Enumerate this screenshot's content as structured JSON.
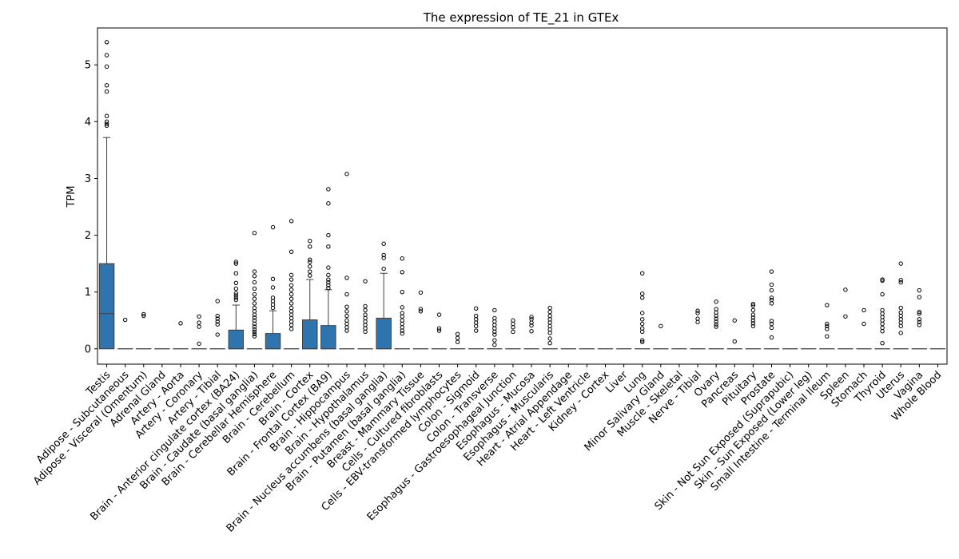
{
  "chart_data": {
    "type": "box",
    "title": "The expression of TE_21 in GTEx",
    "xlabel": "",
    "ylabel": "TPM",
    "ylim": [
      -0.27,
      5.65
    ],
    "yticks": [
      0,
      1,
      2,
      3,
      4,
      5
    ],
    "grid": false,
    "box_color": "#2e75b0",
    "categories": [
      "Testis",
      "Adipose - Subcutaneous",
      "Adipose - Visceral (Omentum)",
      "Adrenal Gland",
      "Artery - Aorta",
      "Artery - Coronary",
      "Artery - Tibial",
      "Brain - Anterior cingulate cortex (BA24)",
      "Brain - Caudate (basal ganglia)",
      "Brain - Cerebellar Hemisphere",
      "Brain - Cerebellum",
      "Brain - Cortex",
      "Brain - Frontal Cortex (BA9)",
      "Brain - Hippocampus",
      "Brain - Hypothalamus",
      "Brain - Nucleus accumbens (basal ganglia)",
      "Brain - Putamen (basal ganglia)",
      "Breast - Mammary Tissue",
      "Cells - Cultured fibroblasts",
      "Cells - EBV-transformed lymphocytes",
      "Colon - Sigmoid",
      "Colon - Transverse",
      "Esophagus - Gastroesophageal Junction",
      "Esophagus - Mucosa",
      "Esophagus - Muscularis",
      "Heart - Atrial Appendage",
      "Heart - Left Ventricle",
      "Kidney - Cortex",
      "Liver",
      "Lung",
      "Minor Salivary Gland",
      "Muscle - Skeletal",
      "Nerve - Tibial",
      "Ovary",
      "Pancreas",
      "Pituitary",
      "Prostate",
      "Skin - Not Sun Exposed (Suprapubic)",
      "Skin - Sun Exposed (Lower leg)",
      "Small Intestine - Terminal Ileum",
      "Spleen",
      "Stomach",
      "Thyroid",
      "Uterus",
      "Vagina",
      "Whole Blood"
    ],
    "boxes": [
      {
        "q1": 0,
        "median": 0.62,
        "q3": 1.5,
        "whislo": 0,
        "whishi": 3.72,
        "fliers": [
          3.93,
          3.96,
          4.0,
          4.1,
          4.53,
          4.64,
          4.97,
          5.17,
          5.4
        ]
      },
      {
        "q1": 0,
        "median": 0,
        "q3": 0,
        "whislo": 0,
        "whishi": 0,
        "fliers": [
          0.51
        ]
      },
      {
        "q1": 0,
        "median": 0,
        "q3": 0,
        "whislo": 0,
        "whishi": 0,
        "fliers": [
          0.58,
          0.61
        ]
      },
      {
        "q1": 0,
        "median": 0,
        "q3": 0,
        "whislo": 0,
        "whishi": 0,
        "fliers": []
      },
      {
        "q1": 0,
        "median": 0,
        "q3": 0,
        "whislo": 0,
        "whishi": 0,
        "fliers": [
          0.45
        ]
      },
      {
        "q1": 0,
        "median": 0,
        "q3": 0,
        "whislo": 0,
        "whishi": 0,
        "fliers": [
          0.09,
          0.39,
          0.46,
          0.57
        ]
      },
      {
        "q1": 0,
        "median": 0,
        "q3": 0,
        "whislo": 0,
        "whishi": 0,
        "fliers": [
          0.25,
          0.43,
          0.48,
          0.53,
          0.58,
          0.84
        ]
      },
      {
        "q1": 0,
        "median": 0,
        "q3": 0.33,
        "whislo": 0,
        "whishi": 0.77,
        "fliers": [
          0.86,
          0.9,
          0.94,
          0.98,
          1.06,
          1.16,
          1.33,
          1.5,
          1.53
        ]
      },
      {
        "q1": 0,
        "median": 0,
        "q3": 0,
        "whislo": 0,
        "whishi": 0,
        "fliers": [
          0.22,
          0.26,
          0.3,
          0.34,
          0.39,
          0.44,
          0.5,
          0.55,
          0.6,
          0.66,
          0.72,
          0.8,
          0.88,
          0.96,
          1.06,
          1.17,
          1.28,
          1.36,
          2.04
        ]
      },
      {
        "q1": 0,
        "median": 0,
        "q3": 0.27,
        "whislo": 0,
        "whishi": 0.67,
        "fliers": [
          0.72,
          0.78,
          0.84,
          0.9,
          1.08,
          1.23,
          2.14
        ]
      },
      {
        "q1": 0,
        "median": 0,
        "q3": 0,
        "whislo": 0,
        "whishi": 0,
        "fliers": [
          0.35,
          0.42,
          0.48,
          0.54,
          0.6,
          0.66,
          0.72,
          0.8,
          0.88,
          0.96,
          1.04,
          1.12,
          1.22,
          1.3,
          1.71,
          2.25
        ]
      },
      {
        "q1": 0,
        "median": 0,
        "q3": 0.51,
        "whislo": 0,
        "whishi": 1.22,
        "fliers": [
          1.29,
          1.36,
          1.45,
          1.53,
          1.57,
          1.8,
          1.9
        ]
      },
      {
        "q1": 0,
        "median": 0,
        "q3": 0.41,
        "whislo": 0,
        "whishi": 1.04,
        "fliers": [
          1.07,
          1.12,
          1.17,
          1.22,
          1.3,
          1.43,
          1.8,
          2.0,
          2.56,
          2.81
        ]
      },
      {
        "q1": 0,
        "median": 0,
        "q3": 0,
        "whislo": 0,
        "whishi": 0,
        "fliers": [
          0.32,
          0.38,
          0.44,
          0.5,
          0.58,
          0.66,
          0.74,
          0.96,
          1.25,
          3.08
        ]
      },
      {
        "q1": 0,
        "median": 0,
        "q3": 0,
        "whislo": 0,
        "whishi": 0,
        "fliers": [
          0.3,
          0.36,
          0.42,
          0.48,
          0.54,
          0.6,
          0.68,
          0.75,
          1.19
        ]
      },
      {
        "q1": 0,
        "median": 0,
        "q3": 0.54,
        "whislo": 0,
        "whishi": 1.33,
        "fliers": [
          1.41,
          1.6,
          1.65,
          1.85
        ]
      },
      {
        "q1": 0,
        "median": 0,
        "q3": 0,
        "whislo": 0,
        "whishi": 0,
        "fliers": [
          0.27,
          0.32,
          0.38,
          0.44,
          0.5,
          0.57,
          0.63,
          0.73,
          1.0,
          1.35,
          1.59
        ]
      },
      {
        "q1": 0,
        "median": 0,
        "q3": 0,
        "whislo": 0,
        "whishi": 0,
        "fliers": [
          0.66,
          0.7,
          0.99
        ]
      },
      {
        "q1": 0,
        "median": 0,
        "q3": 0,
        "whislo": 0,
        "whishi": 0,
        "fliers": [
          0.32,
          0.36,
          0.6
        ]
      },
      {
        "q1": 0,
        "median": 0,
        "q3": 0,
        "whislo": 0,
        "whishi": 0,
        "fliers": [
          0.12,
          0.19,
          0.26
        ]
      },
      {
        "q1": 0,
        "median": 0,
        "q3": 0,
        "whislo": 0,
        "whishi": 0,
        "fliers": [
          0.32,
          0.4,
          0.46,
          0.52,
          0.58,
          0.71
        ]
      },
      {
        "q1": 0,
        "median": 0,
        "q3": 0,
        "whislo": 0,
        "whishi": 0,
        "fliers": [
          0.07,
          0.15,
          0.25,
          0.3,
          0.36,
          0.42,
          0.48,
          0.54,
          0.68
        ]
      },
      {
        "q1": 0,
        "median": 0,
        "q3": 0,
        "whislo": 0,
        "whishi": 0,
        "fliers": [
          0.3,
          0.38,
          0.44,
          0.5
        ]
      },
      {
        "q1": 0,
        "median": 0,
        "q3": 0,
        "whislo": 0,
        "whishi": 0,
        "fliers": [
          0.31,
          0.41,
          0.46,
          0.52,
          0.56
        ]
      },
      {
        "q1": 0,
        "median": 0,
        "q3": 0,
        "whislo": 0,
        "whishi": 0,
        "fliers": [
          0.1,
          0.18,
          0.28,
          0.34,
          0.4,
          0.46,
          0.52,
          0.58,
          0.65,
          0.72
        ]
      },
      {
        "q1": 0,
        "median": 0,
        "q3": 0,
        "whislo": 0,
        "whishi": 0,
        "fliers": []
      },
      {
        "q1": 0,
        "median": 0,
        "q3": 0,
        "whislo": 0,
        "whishi": 0,
        "fliers": []
      },
      {
        "q1": 0,
        "median": 0,
        "q3": 0,
        "whislo": 0,
        "whishi": 0,
        "fliers": []
      },
      {
        "q1": 0,
        "median": 0,
        "q3": 0,
        "whislo": 0,
        "whishi": 0,
        "fliers": []
      },
      {
        "q1": 0,
        "median": 0,
        "q3": 0,
        "whislo": 0,
        "whishi": 0,
        "fliers": [
          0.12,
          0.15,
          0.3,
          0.36,
          0.44,
          0.52,
          0.63,
          0.9,
          0.97,
          1.33
        ]
      },
      {
        "q1": 0,
        "median": 0,
        "q3": 0,
        "whislo": 0,
        "whishi": 0,
        "fliers": [
          0.4
        ]
      },
      {
        "q1": 0,
        "median": 0,
        "q3": 0,
        "whislo": 0,
        "whishi": 0,
        "fliers": []
      },
      {
        "q1": 0,
        "median": 0,
        "q3": 0,
        "whislo": 0,
        "whishi": 0,
        "fliers": [
          0.47,
          0.53,
          0.63,
          0.67
        ]
      },
      {
        "q1": 0,
        "median": 0,
        "q3": 0,
        "whislo": 0,
        "whishi": 0,
        "fliers": [
          0.39,
          0.43,
          0.48,
          0.53,
          0.58,
          0.64,
          0.7,
          0.83
        ]
      },
      {
        "q1": 0,
        "median": 0,
        "q3": 0,
        "whislo": 0,
        "whishi": 0,
        "fliers": [
          0.13,
          0.5
        ]
      },
      {
        "q1": 0,
        "median": 0,
        "q3": 0,
        "whislo": 0,
        "whishi": 0,
        "fliers": [
          0.4,
          0.45,
          0.5,
          0.55,
          0.6,
          0.68,
          0.76,
          0.79
        ]
      },
      {
        "q1": 0,
        "median": 0,
        "q3": 0,
        "whislo": 0,
        "whishi": 0,
        "fliers": [
          0.2,
          0.37,
          0.44,
          0.49,
          0.8,
          0.86,
          0.9,
          1.03,
          1.13,
          1.36
        ]
      },
      {
        "q1": 0,
        "median": 0,
        "q3": 0,
        "whislo": 0,
        "whishi": 0,
        "fliers": []
      },
      {
        "q1": 0,
        "median": 0,
        "q3": 0,
        "whislo": 0,
        "whishi": 0,
        "fliers": []
      },
      {
        "q1": 0,
        "median": 0,
        "q3": 0,
        "whislo": 0,
        "whishi": 0,
        "fliers": [
          0.22,
          0.35,
          0.4,
          0.44,
          0.77
        ]
      },
      {
        "q1": 0,
        "median": 0,
        "q3": 0,
        "whislo": 0,
        "whishi": 0,
        "fliers": [
          0.57,
          1.04
        ]
      },
      {
        "q1": 0,
        "median": 0,
        "q3": 0,
        "whislo": 0,
        "whishi": 0,
        "fliers": [
          0.44,
          0.68
        ]
      },
      {
        "q1": 0,
        "median": 0,
        "q3": 0,
        "whislo": 0,
        "whishi": 0,
        "fliers": [
          0.1,
          0.31,
          0.37,
          0.44,
          0.5,
          0.56,
          0.62,
          0.68,
          0.96,
          1.2,
          1.22
        ]
      },
      {
        "q1": 0,
        "median": 0,
        "q3": 0,
        "whislo": 0,
        "whishi": 0,
        "fliers": [
          0.28,
          0.4,
          0.46,
          0.52,
          0.58,
          0.64,
          0.72,
          1.17,
          1.21,
          1.5
        ]
      },
      {
        "q1": 0,
        "median": 0,
        "q3": 0,
        "whislo": 0,
        "whishi": 0,
        "fliers": [
          0.42,
          0.47,
          0.52,
          0.62,
          0.65,
          0.91,
          1.03
        ]
      },
      {
        "q1": 0,
        "median": 0,
        "q3": 0,
        "whislo": 0,
        "whishi": 0,
        "fliers": []
      }
    ]
  }
}
